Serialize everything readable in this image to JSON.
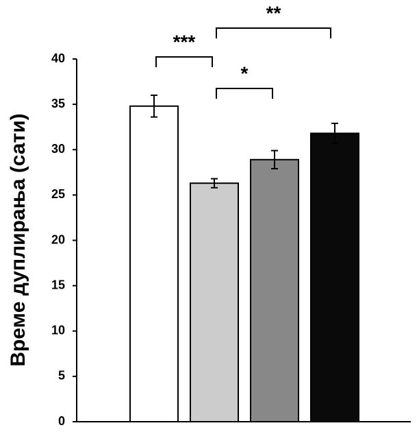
{
  "chart_data": {
    "type": "bar",
    "y_label": "Време дуплирања (сати)",
    "categories": [
      null,
      null,
      null,
      null
    ],
    "values": [
      34.8,
      26.3,
      28.9,
      31.8
    ],
    "errors": [
      1.2,
      0.5,
      1.0,
      1.1
    ],
    "colors": [
      "#ffffff",
      "#cccccc",
      "#888888",
      "#0a0a0a"
    ],
    "ylim": [
      0,
      40
    ],
    "yticks": [
      0,
      5,
      10,
      15,
      20,
      25,
      30,
      35,
      40
    ],
    "annotations": [
      "***",
      "*",
      "**"
    ]
  }
}
